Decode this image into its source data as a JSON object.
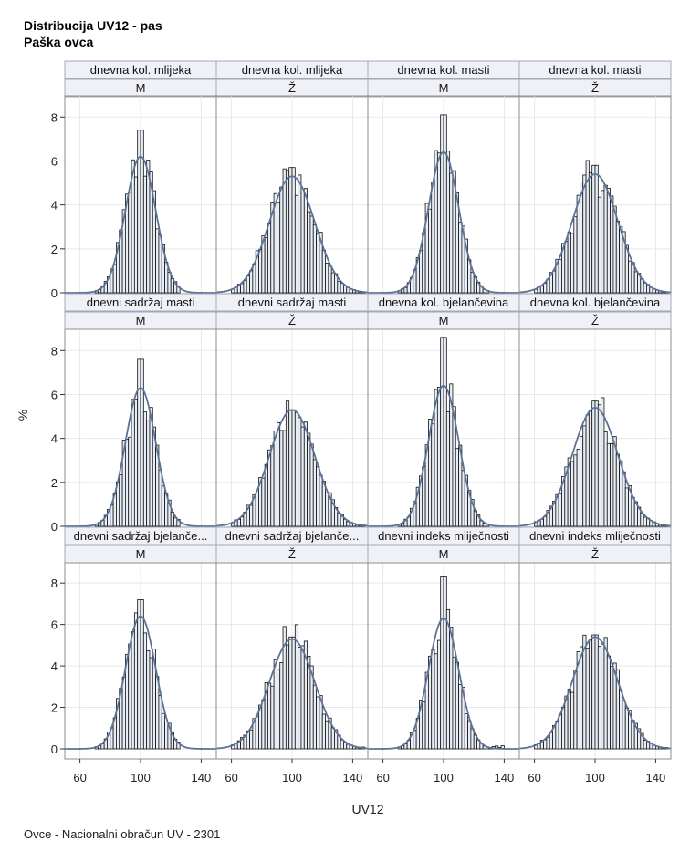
{
  "title": "Distribucija UV12 - pas",
  "subtitle": "Paška ovca",
  "footnote": "Ovce - Nacionalni obračun UV - 2301",
  "colors": {
    "bar_fill": "#e9edf5",
    "bar_stroke": "#111111",
    "curve": "#5a7396",
    "header_fill": "#f0f1f7",
    "header_border": "#a3a8b8",
    "panel_border": "#8e8e8e",
    "grid": "#e8e8e8"
  },
  "chart_data": {
    "type": "histogram",
    "xlabel": "UV12",
    "ylabel": "%",
    "xlim": [
      50,
      150
    ],
    "ylim": [
      0,
      8.8
    ],
    "xticks": [
      60,
      100,
      140
    ],
    "yticks": [
      0,
      2,
      4,
      6,
      8
    ],
    "bin_width": 2,
    "panels": [
      {
        "trait": "dnevna kol. mlijeka",
        "sex": "M",
        "mean": 100,
        "sd": 10,
        "peak": 6.2,
        "observed_peak": 7.4,
        "range": [
          70,
          125
        ]
      },
      {
        "trait": "dnevna kol. mlijeka",
        "sex": "Ž",
        "mean": 100,
        "sd": 15,
        "peak": 5.3,
        "observed_peak": 5.7,
        "range": [
          60,
          148
        ]
      },
      {
        "trait": "dnevna kol. masti",
        "sex": "M",
        "mean": 100,
        "sd": 10,
        "peak": 6.4,
        "observed_peak": 8.1,
        "range": [
          70,
          130
        ]
      },
      {
        "trait": "dnevna kol. masti",
        "sex": "Ž",
        "mean": 100,
        "sd": 15,
        "peak": 5.4,
        "observed_peak": 5.8,
        "range": [
          60,
          148
        ]
      },
      {
        "trait": "dnevni sadržaj masti",
        "sex": "M",
        "mean": 100,
        "sd": 10,
        "peak": 6.3,
        "observed_peak": 7.6,
        "range": [
          70,
          125
        ]
      },
      {
        "trait": "dnevni sadržaj masti",
        "sex": "Ž",
        "mean": 100,
        "sd": 15,
        "peak": 5.3,
        "observed_peak": 5.3,
        "range": [
          60,
          148
        ]
      },
      {
        "trait": "dnevna kol. bjelančevina",
        "sex": "M",
        "mean": 100,
        "sd": 10,
        "peak": 6.4,
        "observed_peak": 8.6,
        "range": [
          70,
          130
        ]
      },
      {
        "trait": "dnevna kol. bjelančevina",
        "sex": "Ž",
        "mean": 100,
        "sd": 15,
        "peak": 5.4,
        "observed_peak": 5.7,
        "range": [
          60,
          148
        ]
      },
      {
        "trait": "dnevni sadržaj bjelanče...",
        "sex": "M",
        "mean": 100,
        "sd": 10,
        "peak": 6.4,
        "observed_peak": 7.2,
        "range": [
          70,
          125
        ]
      },
      {
        "trait": "dnevni sadržaj bjelanče...",
        "sex": "Ž",
        "mean": 100,
        "sd": 15,
        "peak": 5.3,
        "observed_peak": 5.4,
        "range": [
          60,
          148
        ]
      },
      {
        "trait": "dnevni indeks mliječnosti",
        "sex": "M",
        "mean": 100,
        "sd": 10,
        "peak": 6.3,
        "observed_peak": 8.3,
        "range": [
          70,
          140
        ]
      },
      {
        "trait": "dnevni indeks mliječnosti",
        "sex": "Ž",
        "mean": 100,
        "sd": 15,
        "peak": 5.4,
        "observed_peak": 5.5,
        "range": [
          60,
          148
        ]
      }
    ]
  }
}
